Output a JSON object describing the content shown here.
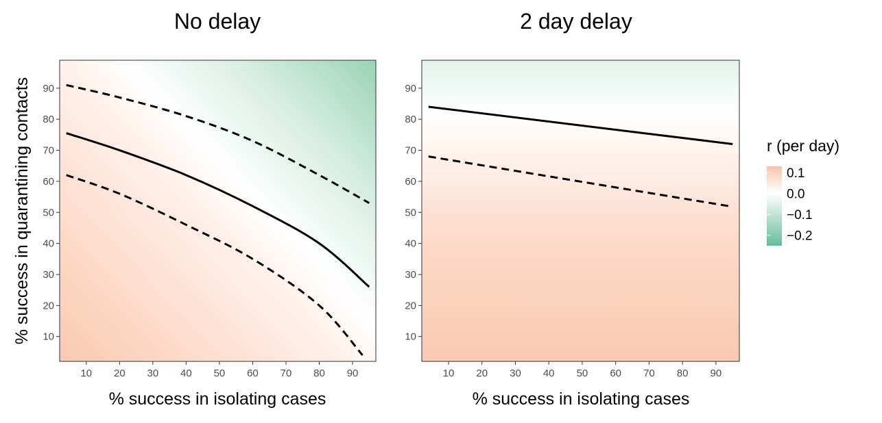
{
  "chart_data": [
    {
      "type": "heatmap",
      "title": "No delay",
      "xlabel": "% success in isolating cases",
      "ylabel": "% success in quarantining contacts",
      "xlim": [
        2,
        97
      ],
      "ylim": [
        2,
        99
      ],
      "xticks": [
        "10",
        "20",
        "30",
        "40",
        "50",
        "60",
        "70",
        "80",
        "90"
      ],
      "yticks": [
        "10",
        "20",
        "30",
        "40",
        "50",
        "60",
        "70",
        "80",
        "90"
      ],
      "zero_offset": 0,
      "contours": [
        {
          "name": "r = 0 (median)",
          "style": "solid",
          "x": [
            4,
            20,
            40,
            60,
            80,
            95
          ],
          "y": [
            75.5,
            70,
            62,
            52,
            40,
            26
          ]
        },
        {
          "name": "upper bound",
          "style": "dashed",
          "x": [
            4,
            20,
            40,
            60,
            80,
            95
          ],
          "y": [
            91,
            87,
            81,
            73,
            62,
            53
          ]
        },
        {
          "name": "lower bound",
          "style": "dashed",
          "x": [
            4,
            20,
            40,
            60,
            80,
            93
          ],
          "y": [
            62,
            56,
            46,
            35,
            20,
            4
          ]
        }
      ]
    },
    {
      "type": "heatmap",
      "title": "2 day delay",
      "xlabel": "% success in isolating cases",
      "ylabel": "",
      "xlim": [
        2,
        97
      ],
      "ylim": [
        2,
        99
      ],
      "xticks": [
        "10",
        "20",
        "30",
        "40",
        "50",
        "60",
        "70",
        "80",
        "90"
      ],
      "yticks": [
        "10",
        "20",
        "30",
        "40",
        "50",
        "60",
        "70",
        "80",
        "90"
      ],
      "zero_offset": 1,
      "contours": [
        {
          "name": "r = 0 (median)",
          "style": "solid",
          "x": [
            4,
            95
          ],
          "y": [
            84,
            72
          ]
        },
        {
          "name": "lower bound",
          "style": "dashed",
          "x": [
            4,
            94
          ],
          "y": [
            68,
            52
          ]
        }
      ]
    }
  ],
  "legend": {
    "title": "r (per day)",
    "labels": [
      "0.1",
      "0.0",
      "−0.1",
      "−0.2"
    ],
    "values": [
      0.1,
      0.0,
      -0.1,
      -0.2
    ],
    "range": [
      -0.25,
      0.13
    ],
    "colors": {
      "positive": "#f8c3a9",
      "zero": "#ffffff",
      "negative": "#66bc9a"
    }
  }
}
